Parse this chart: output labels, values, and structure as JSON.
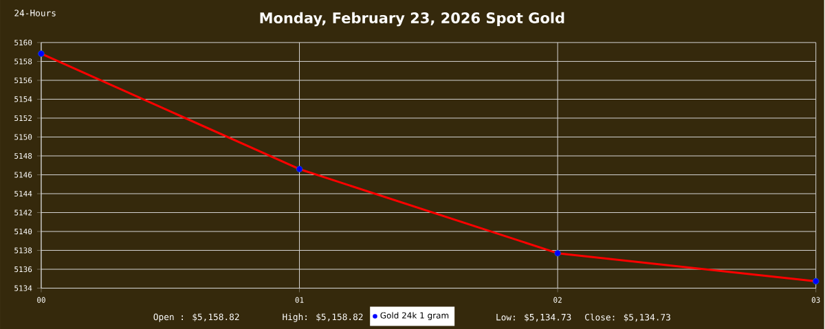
{
  "chart_data": {
    "type": "line",
    "title": "Monday, February 23, 2026 Spot Gold",
    "annotations": [
      "24-Hours",
      "Open : $5,158.82",
      "High: $5,158.82",
      "Low: $5,134.73",
      "Close: $5,134.73"
    ],
    "x": [
      0,
      1,
      2,
      3
    ],
    "series": [
      {
        "name": "Gold 24k 1 gram",
        "color": "#ff0000",
        "values": [
          5158.82,
          5146.6,
          5137.7,
          5134.73
        ]
      }
    ],
    "xlim": [
      0,
      3
    ],
    "xticks": [
      {
        "value": 0,
        "label": "00"
      },
      {
        "value": 1,
        "label": "01"
      },
      {
        "value": 2,
        "label": "02"
      },
      {
        "value": 3,
        "label": "03"
      }
    ],
    "ylim": [
      5134,
      5160
    ],
    "yticks": [
      5134,
      5136,
      5138,
      5140,
      5142,
      5144,
      5146,
      5148,
      5150,
      5152,
      5154,
      5156,
      5158,
      5160
    ],
    "grid": true,
    "legend": "bottom",
    "marker": "circle",
    "line_style": "solid"
  }
}
